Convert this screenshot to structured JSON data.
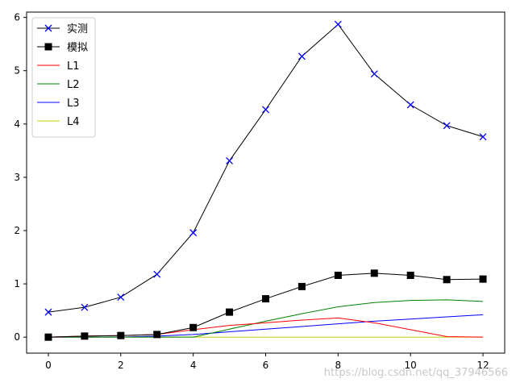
{
  "chart_data": {
    "type": "line",
    "title": "",
    "xlabel": "",
    "ylabel": "",
    "xlim": [
      -0.6,
      12.6
    ],
    "ylim": [
      -0.3,
      6.1
    ],
    "xticks": [
      0,
      2,
      4,
      6,
      8,
      10,
      12
    ],
    "yticks": [
      0,
      1,
      2,
      3,
      4,
      5,
      6
    ],
    "grid": false,
    "legend_position": "top-left",
    "x": [
      0,
      1,
      2,
      3,
      4,
      5,
      6,
      7,
      8,
      9,
      10,
      11,
      12
    ],
    "series": [
      {
        "name": "实测",
        "color": "#000000",
        "marker": "x",
        "marker_color": "#0000ff",
        "values": [
          0.47,
          0.56,
          0.75,
          1.18,
          1.96,
          3.31,
          4.27,
          5.27,
          5.87,
          4.94,
          4.36,
          3.97,
          3.76
        ]
      },
      {
        "name": "模拟",
        "color": "#000000",
        "marker": "square",
        "marker_color": "#000000",
        "values": [
          0.0,
          0.02,
          0.03,
          0.05,
          0.18,
          0.47,
          0.72,
          0.95,
          1.16,
          1.2,
          1.16,
          1.08,
          1.09
        ]
      },
      {
        "name": "L1",
        "color": "#ff0000",
        "marker": "none",
        "values": [
          0.0,
          0.02,
          0.03,
          0.05,
          0.14,
          0.22,
          0.27,
          0.32,
          0.36,
          0.27,
          0.14,
          0.01,
          0.0
        ]
      },
      {
        "name": "L2",
        "color": "#008000",
        "marker": "none",
        "values": [
          0.0,
          0.0,
          0.0,
          0.0,
          0.0,
          0.15,
          0.3,
          0.44,
          0.57,
          0.65,
          0.69,
          0.7,
          0.67
        ]
      },
      {
        "name": "L3",
        "color": "#0000ff",
        "marker": "none",
        "values": [
          0.0,
          0.0,
          0.0,
          0.02,
          0.05,
          0.1,
          0.15,
          0.2,
          0.25,
          0.3,
          0.34,
          0.38,
          0.42
        ]
      },
      {
        "name": "L4",
        "color": "#cccc00",
        "marker": "none",
        "values": [
          0.0,
          0.0,
          0.0,
          0.0,
          0.0,
          0.0,
          0.0,
          0.0,
          0.0,
          0.0,
          0.0,
          0.0,
          0.0
        ]
      }
    ]
  },
  "watermark": "https://blog.csdn.net/qq_37946566"
}
